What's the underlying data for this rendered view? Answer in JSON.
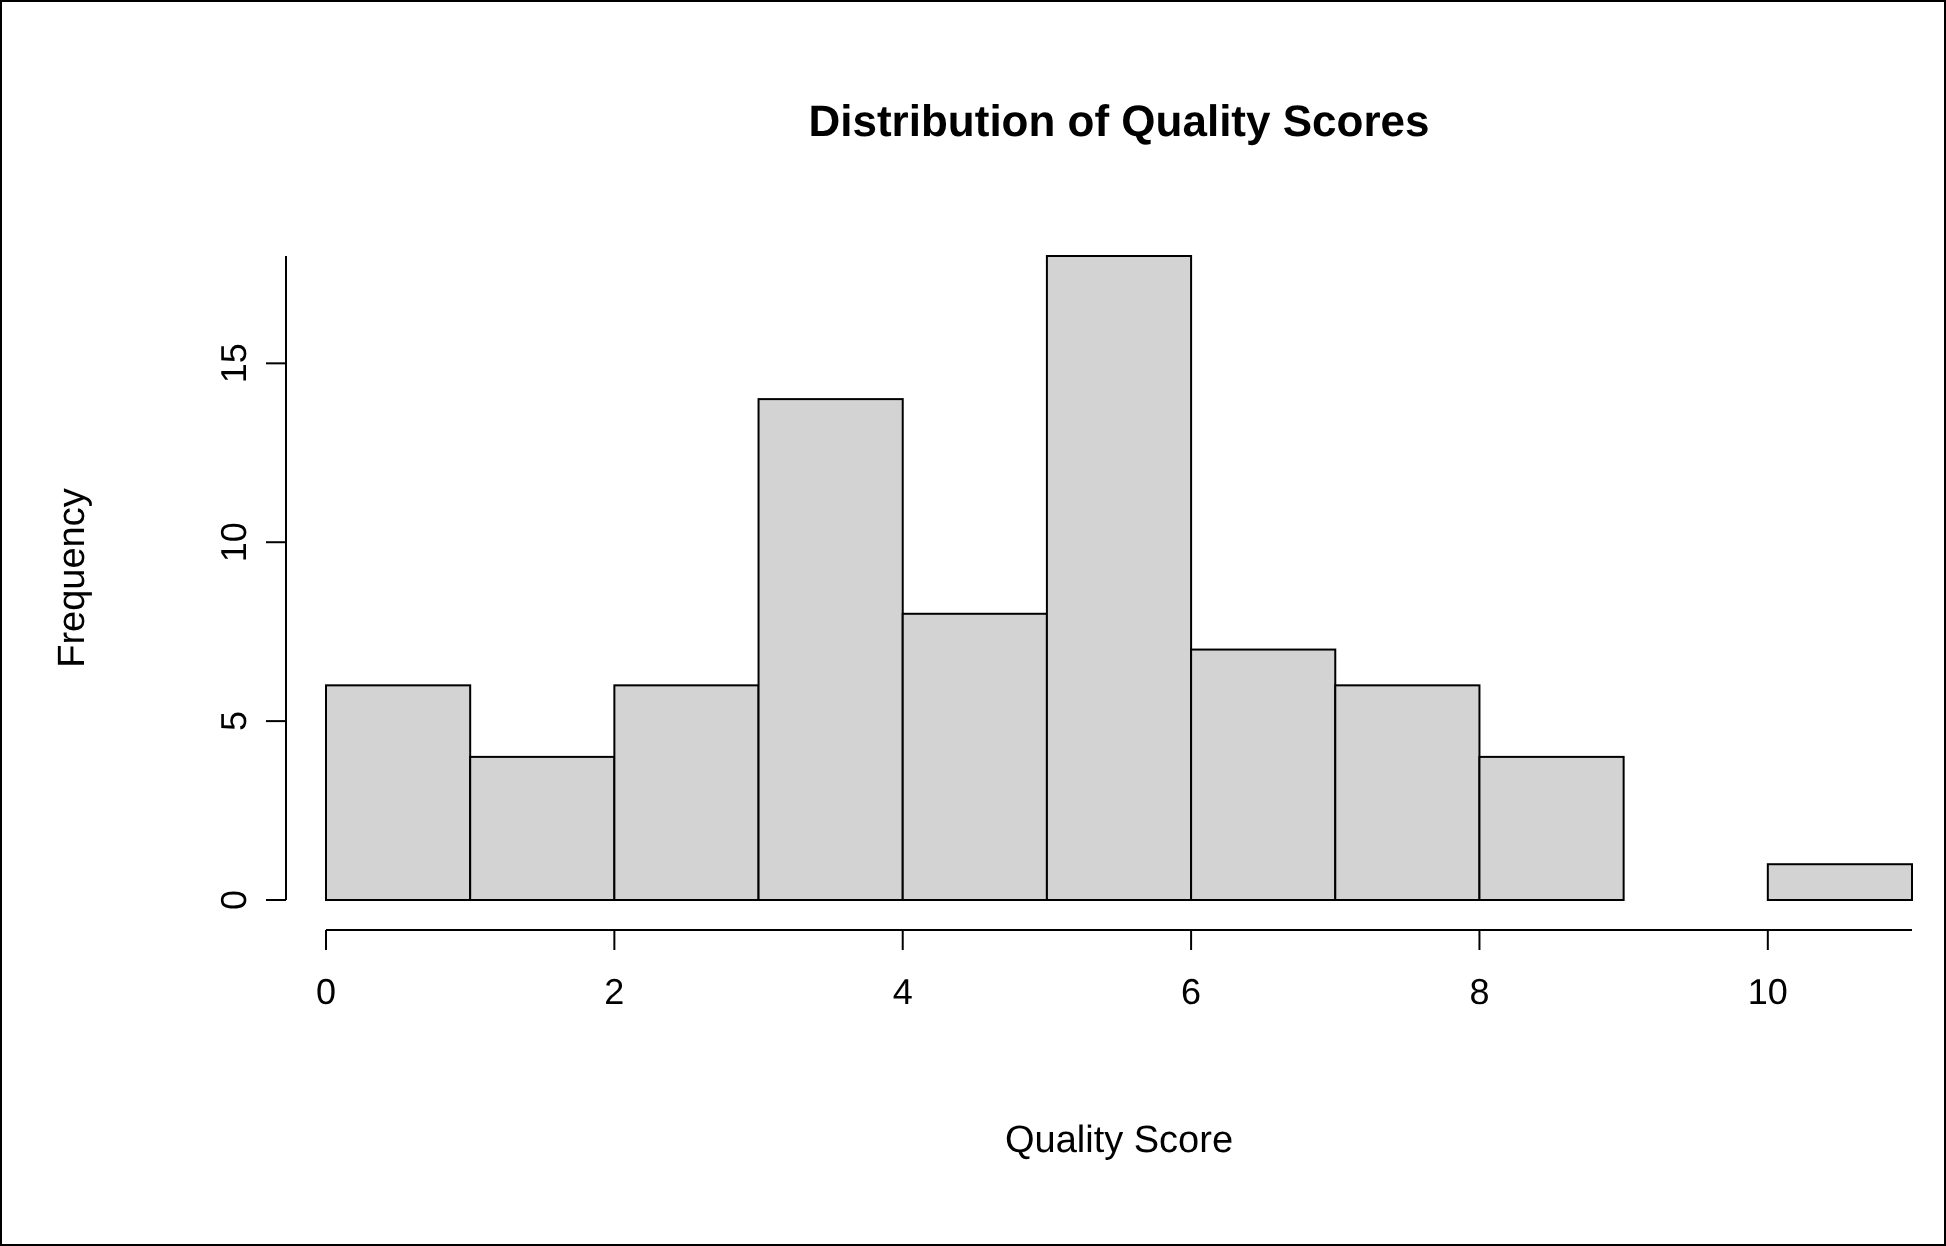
{
  "chart_data": {
    "type": "histogram",
    "title": "Distribution of Quality Scores",
    "xlabel": "Quality Score",
    "ylabel": "Frequency",
    "bins": [
      0,
      1,
      2,
      3,
      4,
      5,
      6,
      7,
      8,
      9,
      10,
      11
    ],
    "values": [
      6,
      4,
      6,
      14,
      8,
      18,
      7,
      6,
      4,
      0,
      1
    ],
    "color": "#d3d3d3",
    "xlim": [
      0,
      11
    ],
    "xticks": [
      0,
      2,
      4,
      6,
      8,
      10
    ],
    "ylim": [
      0,
      18
    ],
    "yticks": [
      0,
      5,
      10,
      15
    ],
    "grid": false
  }
}
